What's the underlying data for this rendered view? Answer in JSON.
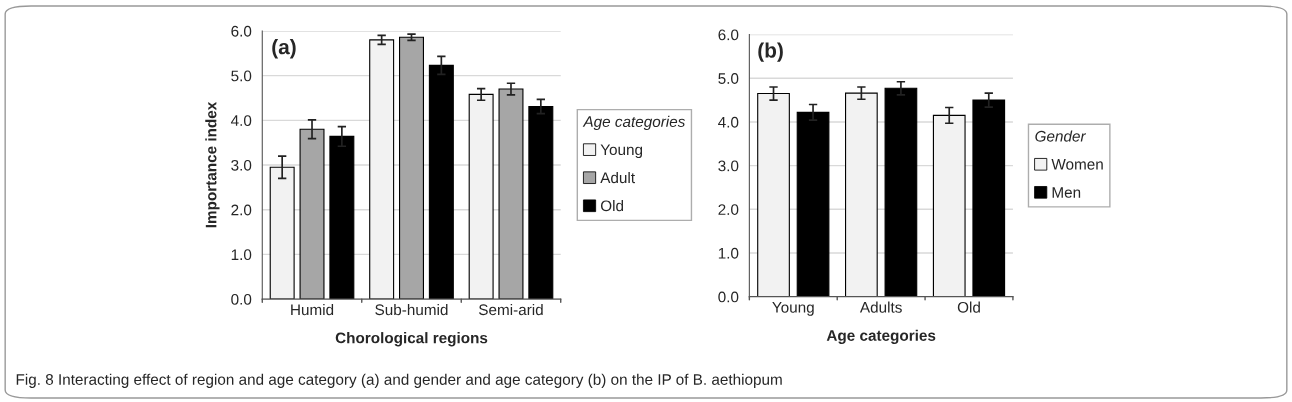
{
  "chart_data": [
    {
      "type": "bar",
      "title": "(a)",
      "xlabel": "Chorological regions",
      "ylabel": "Importance index",
      "legend_title": "Age categories",
      "legend": "right",
      "grid": "y",
      "categories": [
        "Humid",
        "Sub-humid",
        "Semi-arid"
      ],
      "series": [
        {
          "name": "Young",
          "color": "#f2f2f2",
          "values": [
            2.95,
            5.8,
            4.58
          ],
          "errors": [
            0.25,
            0.1,
            0.13
          ]
        },
        {
          "name": "Adult",
          "color": "#a6a6a6",
          "values": [
            3.8,
            5.86,
            4.7
          ],
          "errors": [
            0.21,
            0.07,
            0.13
          ]
        },
        {
          "name": "Old",
          "color": "#000000",
          "values": [
            3.64,
            5.23,
            4.31
          ],
          "errors": [
            0.22,
            0.2,
            0.16
          ]
        }
      ],
      "ylim": [
        0,
        6
      ],
      "yticks": [
        {
          "value": 0,
          "label": "0.0"
        },
        {
          "value": 1,
          "label": "1.0"
        },
        {
          "value": 2,
          "label": "2.0"
        },
        {
          "value": 3,
          "label": "3.0"
        },
        {
          "value": 4,
          "label": "4.0"
        },
        {
          "value": 5,
          "label": "5.0"
        },
        {
          "value": 6,
          "label": "6.0"
        }
      ],
      "annotations": [
        "Fig. 8 Interacting effect of region and age category (a) and gender and age category (b) on the IP of B. aethiopum"
      ]
    },
    {
      "type": "bar",
      "title": "(b)",
      "xlabel": "Age categories",
      "legend_title": "Gender",
      "legend": "right",
      "grid": "y",
      "categories": [
        "Young",
        "Adults",
        "Old"
      ],
      "series": [
        {
          "name": "Women",
          "color": "#f2f2f2",
          "values": [
            4.65,
            4.66,
            4.15
          ],
          "errors": [
            0.15,
            0.14,
            0.18
          ]
        },
        {
          "name": "Men",
          "color": "#000000",
          "values": [
            4.22,
            4.77,
            4.5
          ],
          "errors": [
            0.18,
            0.15,
            0.16
          ]
        }
      ],
      "ylim": [
        0,
        6
      ],
      "yticks": [
        {
          "value": 0,
          "label": "0.0"
        },
        {
          "value": 1,
          "label": "1.0"
        },
        {
          "value": 2,
          "label": "2.0"
        },
        {
          "value": 3,
          "label": "3.0"
        },
        {
          "value": 4,
          "label": "4.0"
        },
        {
          "value": 5,
          "label": "5.0"
        },
        {
          "value": 6,
          "label": "6.0"
        }
      ]
    }
  ]
}
